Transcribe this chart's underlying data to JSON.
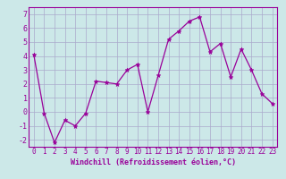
{
  "x": [
    0,
    1,
    2,
    3,
    4,
    5,
    6,
    7,
    8,
    9,
    10,
    11,
    12,
    13,
    14,
    15,
    16,
    17,
    18,
    19,
    20,
    21,
    22,
    23
  ],
  "y": [
    4.1,
    -0.1,
    -2.2,
    -0.6,
    -1.0,
    -0.1,
    2.2,
    2.1,
    2.0,
    3.0,
    3.4,
    0.0,
    2.6,
    5.2,
    5.8,
    6.5,
    6.8,
    4.3,
    4.9,
    2.5,
    4.5,
    3.0,
    1.3,
    0.6
  ],
  "line_color": "#990099",
  "marker": "*",
  "markersize": 3.5,
  "linewidth": 0.9,
  "bg_color": "#cce8e8",
  "grid_color": "#aaaacc",
  "xlabel": "Windchill (Refroidissement éolien,°C)",
  "xlabel_color": "#990099",
  "ylim": [
    -2.5,
    7.5
  ],
  "xlim": [
    -0.5,
    23.5
  ],
  "yticks": [
    -2,
    -1,
    0,
    1,
    2,
    3,
    4,
    5,
    6,
    7
  ],
  "xticks": [
    0,
    1,
    2,
    3,
    4,
    5,
    6,
    7,
    8,
    9,
    10,
    11,
    12,
    13,
    14,
    15,
    16,
    17,
    18,
    19,
    20,
    21,
    22,
    23
  ],
  "tick_color": "#990099",
  "spine_color": "#990099",
  "tick_fontsize": 5.5,
  "xlabel_fontsize": 6.0
}
